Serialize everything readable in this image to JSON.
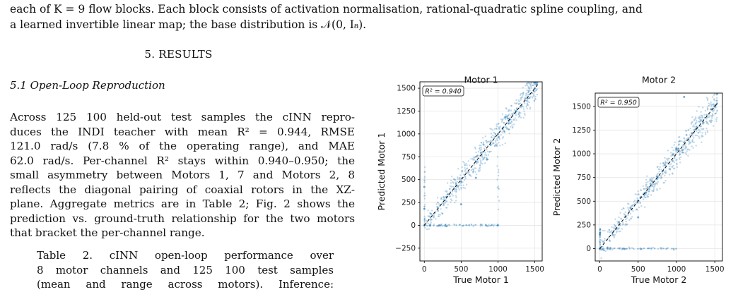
{
  "top_text": {
    "line1": "each of K = 9 flow blocks. Each block consists of activation normalisation, rational-quadratic spline coupling, and",
    "line2": "a learned invertible linear map; the base distribution is 𝒩(0, I₈)."
  },
  "section": {
    "title": "5. RESULTS"
  },
  "subsection": {
    "title": "5.1 Open-Loop Reproduction"
  },
  "paragraph": {
    "lines": [
      "Across 125 100 held-out test samples the cINN repro-",
      "duces the INDI teacher with mean R² = 0.944, RMSE",
      "121.0 rad/s (7.8 % of the operating range), and MAE",
      "62.0 rad/s. Per-channel R² stays within 0.940–0.950; the",
      "small asymmetry between Motors 1, 7 and Motors 2, 8",
      "reflects the diagonal pairing of coaxial rotors in the XZ-",
      "plane. Aggregate metrics are in Table 2; Fig. 2 shows the",
      "prediction vs. ground-truth relationship for the two motors",
      "that bracket the per-channel range."
    ]
  },
  "caption": {
    "lines": [
      "Table 2. cINN open-loop performance over",
      "8 motor channels and 125 100 test samples",
      "(mean and range across motors). Inference:"
    ]
  },
  "chart_data": [
    {
      "type": "scatter",
      "title": "Motor 1",
      "xlabel": "True Motor 1",
      "ylabel": "Predicted Motor 1",
      "annotation": "R² = 0.940",
      "xlim": [
        -60,
        1600
      ],
      "ylim": [
        -390,
        1570
      ],
      "xticks": [
        0,
        500,
        1000,
        1500
      ],
      "yticks": [
        -250,
        0,
        250,
        500,
        750,
        1000,
        1250,
        1500
      ],
      "grid": true,
      "reference_line": "y = x",
      "series": [
        {
          "values": [
            {
              "x": 0,
              "y": 0
            },
            {
              "x": 0,
              "y": 180
            },
            {
              "x": 0,
              "y": 420
            },
            {
              "x": 80,
              "y": 5
            },
            {
              "x": 200,
              "y": 0
            },
            {
              "x": 300,
              "y": -10
            },
            {
              "x": 300,
              "y": 310
            },
            {
              "x": 500,
              "y": 480
            },
            {
              "x": 500,
              "y": 230
            },
            {
              "x": 700,
              "y": 700
            },
            {
              "x": 700,
              "y": 520
            },
            {
              "x": 850,
              "y": 720
            },
            {
              "x": 900,
              "y": 880
            },
            {
              "x": 1000,
              "y": 1000
            },
            {
              "x": 1000,
              "y": 0
            },
            {
              "x": 1100,
              "y": 1180
            },
            {
              "x": 1250,
              "y": 1250
            },
            {
              "x": 1400,
              "y": 1390
            },
            {
              "x": 1500,
              "y": 1500
            },
            {
              "x": 1520,
              "y": 1540
            }
          ]
        }
      ]
    },
    {
      "type": "scatter",
      "title": "Motor 2",
      "xlabel": "True Motor 2",
      "ylabel": "Predicted Motor 2",
      "annotation": "R² = 0.950",
      "xlim": [
        -60,
        1600
      ],
      "ylim": [
        -130,
        1640
      ],
      "xticks": [
        0,
        500,
        1000,
        1500
      ],
      "yticks": [
        0,
        250,
        500,
        750,
        1000,
        1250,
        1500
      ],
      "grid": true,
      "reference_line": "y = x",
      "series": [
        {
          "values": [
            {
              "x": 0,
              "y": 0
            },
            {
              "x": 0,
              "y": 150
            },
            {
              "x": 100,
              "y": 10
            },
            {
              "x": 300,
              "y": 0
            },
            {
              "x": 250,
              "y": 280
            },
            {
              "x": 400,
              "y": 430
            },
            {
              "x": 500,
              "y": 330
            },
            {
              "x": 600,
              "y": 590
            },
            {
              "x": 750,
              "y": 760
            },
            {
              "x": 850,
              "y": 880
            },
            {
              "x": 950,
              "y": 990
            },
            {
              "x": 1000,
              "y": 1050
            },
            {
              "x": 1100,
              "y": 1120
            },
            {
              "x": 1250,
              "y": 1260
            },
            {
              "x": 1350,
              "y": 1330
            },
            {
              "x": 1450,
              "y": 1470
            },
            {
              "x": 1500,
              "y": 1500
            },
            {
              "x": 1530,
              "y": 1530
            },
            {
              "x": 1100,
              "y": 1600
            }
          ]
        }
      ]
    }
  ],
  "colors": {
    "points": "#1f77b4",
    "grid": "#e6e6e6",
    "reference_line": "#000000"
  }
}
